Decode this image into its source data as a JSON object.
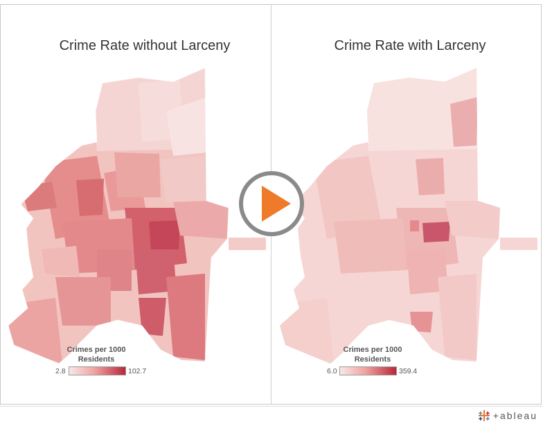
{
  "maps": [
    {
      "id": "left",
      "title": "Crime Rate without Larceny",
      "legend": {
        "title_line1": "Crimes per 1000",
        "title_line2": "Residents",
        "min_label": "2.8",
        "max_label": "102.7",
        "min_value": 2.8,
        "max_value": 102.7
      }
    },
    {
      "id": "right",
      "title": "Crime Rate with Larceny",
      "legend": {
        "title_line1": "Crimes per 1000",
        "title_line2": "Residents",
        "min_label": "6.0",
        "max_label": "359.4",
        "min_value": 6.0,
        "max_value": 359.4
      }
    }
  ],
  "colors": {
    "scale_low": "#f7e9e8",
    "scale_mid": "#efa3a1",
    "scale_high": "#b8283a",
    "play_ring": "#8a8a8a",
    "play_triangle": "#ef7b2a"
  },
  "brand": {
    "text": "+ableau"
  },
  "icons": {
    "play": "play-icon",
    "brand_logo": "tableau-logo-icon"
  }
}
